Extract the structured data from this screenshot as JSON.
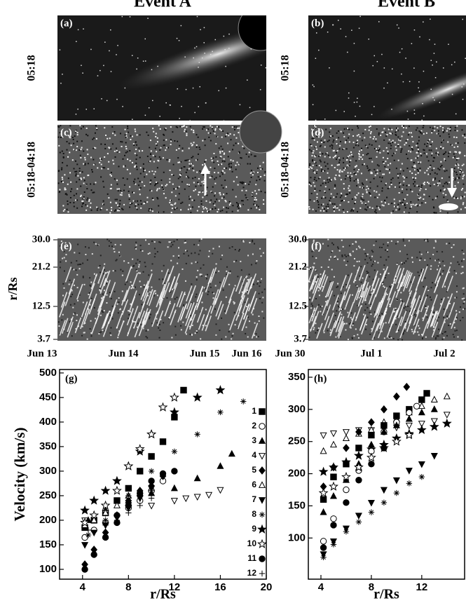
{
  "panels": {
    "events": [
      "Event A",
      "Event B"
    ],
    "row_labels": [
      "05:18",
      "05:18-04:18",
      "r/Rs"
    ],
    "image_labels": [
      "(a)",
      "(b)",
      "(c)",
      "(d)",
      "(e)",
      "(f)"
    ],
    "jmap_yticks": [
      "30.0",
      "21.2",
      "12.5",
      "3.7"
    ],
    "jmap_xticks_a": [
      "Jun 13",
      "Jun 14",
      "Jun 15",
      "Jun 16"
    ],
    "jmap_xticks_b": [
      "Jun 30",
      "Jul 1",
      "Jul 2"
    ]
  },
  "chart_data": [
    {
      "type": "scatter",
      "panel_label": "(g)",
      "xlabel": "r/Rs",
      "ylabel": "Velocity (km/s)",
      "xlim": [
        2,
        20
      ],
      "ylim": [
        80,
        507
      ],
      "xticks": [
        4,
        8,
        12,
        16,
        20
      ],
      "yticks": [
        100,
        150,
        200,
        250,
        300,
        350,
        400,
        450,
        500
      ],
      "legend": "right",
      "series": [
        {
          "name": "1",
          "marker": "square",
          "color": "#000",
          "x": [
            4.2,
            5,
            6,
            7,
            8,
            9,
            10,
            11,
            12,
            12.8
          ],
          "values": [
            185,
            200,
            215,
            240,
            265,
            300,
            330,
            360,
            410,
            465
          ]
        },
        {
          "name": "2",
          "marker": "circle-open",
          "color": "#000",
          "x": [
            4.2,
            5,
            6,
            7,
            8,
            9,
            10,
            11
          ],
          "values": [
            165,
            180,
            195,
            210,
            225,
            240,
            260,
            280
          ]
        },
        {
          "name": "3",
          "marker": "triangle-up",
          "color": "#000",
          "x": [
            4.5,
            6,
            8,
            10,
            12,
            14,
            16,
            17
          ],
          "values": [
            200,
            220,
            240,
            255,
            265,
            285,
            310,
            335
          ]
        },
        {
          "name": "4",
          "marker": "triangle-down-open",
          "color": "#000",
          "x": [
            4.2,
            6,
            8,
            10,
            12,
            13,
            14,
            15,
            16
          ],
          "values": [
            200,
            215,
            225,
            230,
            240,
            245,
            248,
            252,
            262
          ]
        },
        {
          "name": "5",
          "marker": "diamond",
          "color": "#000",
          "x": [
            4.2,
            5,
            6,
            7,
            8,
            9,
            10,
            11
          ],
          "values": [
            110,
            140,
            175,
            210,
            240,
            260,
            270,
            290
          ]
        },
        {
          "name": "6",
          "marker": "triangle-up-open",
          "color": "#000",
          "x": [
            4.2,
            5,
            6,
            7,
            8,
            9,
            10
          ],
          "values": [
            190,
            200,
            215,
            230,
            250,
            255,
            265
          ]
        },
        {
          "name": "7",
          "marker": "triangle-down",
          "color": "#000",
          "x": [
            4.2,
            5,
            6,
            7,
            8,
            9,
            10
          ],
          "values": [
            150,
            175,
            190,
            205,
            225,
            245,
            265
          ]
        },
        {
          "name": "8",
          "marker": "asterisk",
          "color": "#000",
          "x": [
            4.5,
            6,
            8,
            10,
            12,
            14,
            16,
            18
          ],
          "values": [
            170,
            200,
            250,
            300,
            340,
            375,
            420,
            442
          ]
        },
        {
          "name": "9",
          "marker": "star",
          "color": "#000",
          "x": [
            4.2,
            5,
            6,
            7,
            8,
            9,
            10,
            12,
            14,
            16
          ],
          "values": [
            220,
            240,
            260,
            280,
            310,
            340,
            375,
            420,
            450,
            465
          ]
        },
        {
          "name": "10",
          "marker": "star-open",
          "color": "#000",
          "x": [
            4.2,
            5,
            6,
            7,
            8,
            9,
            10,
            11,
            12
          ],
          "values": [
            195,
            210,
            230,
            260,
            310,
            345,
            375,
            430,
            450
          ]
        },
        {
          "name": "11",
          "marker": "circle",
          "color": "#000",
          "x": [
            4.2,
            5,
            6,
            7,
            8,
            9,
            10,
            11,
            12
          ],
          "values": [
            100,
            130,
            165,
            195,
            230,
            255,
            280,
            295,
            300
          ]
        },
        {
          "name": "12",
          "marker": "plus",
          "color": "#000",
          "x": [
            4.5,
            6,
            7,
            8,
            9,
            10
          ],
          "values": [
            180,
            190,
            200,
            215,
            230,
            245
          ]
        }
      ]
    },
    {
      "type": "scatter",
      "panel_label": "(h)",
      "xlabel": "r/Rs",
      "xlim": [
        3,
        15.4
      ],
      "ylim": [
        36,
        362
      ],
      "xticks": [
        4,
        8,
        12
      ],
      "yticks": [
        100,
        150,
        200,
        250,
        300,
        350
      ],
      "series": [
        {
          "marker": "triangle-down-open",
          "color": "#000",
          "x": [
            4.2,
            5,
            6,
            7,
            8,
            9,
            10,
            11,
            12,
            13,
            14
          ],
          "values": [
            260,
            263,
            265,
            268,
            268,
            270,
            272,
            275,
            278,
            282,
            292
          ]
        },
        {
          "marker": "triangle-up-open",
          "color": "#000",
          "x": [
            4.2,
            5,
            6,
            7,
            8,
            9,
            10,
            11,
            12,
            13,
            14
          ],
          "values": [
            235,
            245,
            255,
            262,
            268,
            280,
            285,
            295,
            305,
            315,
            320
          ]
        },
        {
          "marker": "star",
          "color": "#000",
          "x": [
            4.2,
            5,
            6,
            7,
            8,
            9,
            10,
            11,
            12,
            13,
            14
          ],
          "values": [
            203,
            210,
            218,
            228,
            238,
            245,
            255,
            262,
            268,
            273,
            278
          ]
        },
        {
          "marker": "diamond",
          "color": "#000",
          "x": [
            4.2,
            5,
            6,
            7,
            8,
            9,
            10,
            10.8
          ],
          "values": [
            180,
            210,
            240,
            265,
            280,
            300,
            320,
            335
          ]
        },
        {
          "marker": "square",
          "color": "#000",
          "x": [
            4.2,
            5,
            6,
            7,
            8,
            9,
            10,
            11,
            12,
            12.4
          ],
          "values": [
            160,
            195,
            215,
            240,
            260,
            275,
            290,
            300,
            315,
            325
          ]
        },
        {
          "marker": "circle-open",
          "color": "#000",
          "x": [
            4.2,
            5,
            6,
            7,
            8,
            9,
            10,
            11,
            11.6
          ],
          "values": [
            95,
            130,
            175,
            205,
            235,
            265,
            280,
            295,
            305
          ]
        },
        {
          "marker": "triangle-up",
          "color": "#000",
          "x": [
            4.2,
            5,
            6,
            7,
            8,
            9,
            10,
            11,
            12,
            13
          ],
          "values": [
            140,
            165,
            190,
            215,
            245,
            265,
            275,
            285,
            295,
            300
          ]
        },
        {
          "marker": "star-open",
          "color": "#000",
          "x": [
            4.2,
            5,
            6,
            7,
            8,
            9,
            10,
            11
          ],
          "values": [
            170,
            180,
            195,
            210,
            225,
            240,
            250,
            260
          ]
        },
        {
          "marker": "triangle-down",
          "color": "#000",
          "x": [
            4.2,
            5,
            6,
            7,
            8,
            9,
            10,
            11,
            12,
            13
          ],
          "values": [
            75,
            95,
            115,
            135,
            155,
            175,
            190,
            205,
            215,
            228
          ]
        },
        {
          "marker": "asterisk",
          "color": "#000",
          "x": [
            4.2,
            5,
            6,
            7,
            8,
            9,
            10,
            11,
            12
          ],
          "values": [
            70,
            90,
            110,
            125,
            140,
            155,
            170,
            185,
            195
          ]
        },
        {
          "marker": "circle",
          "color": "#000",
          "x": [
            4.2,
            5,
            6,
            7,
            8,
            9
          ],
          "values": [
            85,
            120,
            155,
            190,
            215,
            240
          ]
        }
      ]
    }
  ]
}
